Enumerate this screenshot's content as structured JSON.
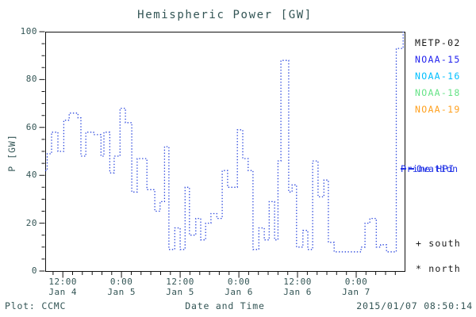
{
  "title": "Hemispheric Power [GW]",
  "footer": {
    "credit": "Plot: CCMC",
    "timestamp": "2015/01/07 08:50:14"
  },
  "legend": {
    "satellites": [
      {
        "label": "METP-02",
        "color": "#1a1a1a"
      },
      {
        "label": "NOAA-15",
        "color": "#2222ee"
      },
      {
        "label": "NOAA-16",
        "color": "#00bfff"
      },
      {
        "label": "NOAA-18",
        "color": "#66e387"
      },
      {
        "label": "NOAA-19",
        "color": "#ffa01e"
      }
    ],
    "model": {
      "line1": "Ovation",
      "line2": "Prime HPI",
      "color": "#2233e6"
    }
  },
  "markers": {
    "south": "+ south",
    "north": "* north"
  },
  "chart_data": {
    "type": "line",
    "style": "dotted-steps",
    "title": "Hemispheric Power [GW]",
    "xlabel": "Date and Time",
    "ylabel": "P [GW]",
    "line_color": "#2a46dd",
    "axis_color": "#111111",
    "x_unit": "hours since 2015-01-04 00:00 UT",
    "x_range": [
      8.4,
      81.9
    ],
    "y_range": [
      0,
      100
    ],
    "y_ticks": [
      0,
      20,
      40,
      60,
      80,
      100
    ],
    "y_minor_step": 5,
    "x_minor_step": 2,
    "x_ticks": [
      {
        "t": 12,
        "time": "12:00",
        "date": "Jan 4"
      },
      {
        "t": 24,
        "time": "0:00",
        "date": "Jan 5"
      },
      {
        "t": 36,
        "time": "12:00",
        "date": "Jan 5"
      },
      {
        "t": 48,
        "time": "0:00",
        "date": "Jan 6"
      },
      {
        "t": 60,
        "time": "12:00",
        "date": "Jan 6"
      },
      {
        "t": 72,
        "time": "0:00",
        "date": "Jan 7"
      }
    ],
    "t_end": 81.9,
    "steps": [
      [
        8.4,
        42
      ],
      [
        8.8,
        49
      ],
      [
        9.7,
        58
      ],
      [
        11.0,
        50
      ],
      [
        12.2,
        63
      ],
      [
        13.3,
        66
      ],
      [
        15.1,
        64
      ],
      [
        15.7,
        48
      ],
      [
        16.7,
        58
      ],
      [
        18.3,
        57
      ],
      [
        19.8,
        48
      ],
      [
        20.4,
        58
      ],
      [
        21.6,
        41
      ],
      [
        22.5,
        48
      ],
      [
        23.7,
        68
      ],
      [
        24.8,
        62
      ],
      [
        26.1,
        33
      ],
      [
        27.2,
        47
      ],
      [
        29.2,
        34
      ],
      [
        30.8,
        25
      ],
      [
        31.9,
        29
      ],
      [
        32.8,
        52
      ],
      [
        33.7,
        9
      ],
      [
        34.9,
        18
      ],
      [
        36.0,
        9
      ],
      [
        37.0,
        35
      ],
      [
        37.9,
        15
      ],
      [
        39.2,
        22
      ],
      [
        40.2,
        13
      ],
      [
        41.2,
        20
      ],
      [
        42.3,
        24
      ],
      [
        43.5,
        22
      ],
      [
        44.6,
        42
      ],
      [
        45.7,
        35
      ],
      [
        47.7,
        59
      ],
      [
        48.8,
        47
      ],
      [
        49.9,
        42
      ],
      [
        50.9,
        9
      ],
      [
        52.1,
        18
      ],
      [
        53.2,
        13
      ],
      [
        54.2,
        29
      ],
      [
        55.3,
        13
      ],
      [
        56.0,
        46
      ],
      [
        56.6,
        88
      ],
      [
        58.2,
        33
      ],
      [
        58.9,
        36
      ],
      [
        59.8,
        10
      ],
      [
        61.1,
        17
      ],
      [
        62.1,
        9
      ],
      [
        63.1,
        46
      ],
      [
        64.2,
        31
      ],
      [
        65.4,
        38
      ],
      [
        66.3,
        12
      ],
      [
        67.5,
        8
      ],
      [
        73.0,
        10
      ],
      [
        73.8,
        20
      ],
      [
        74.8,
        22
      ],
      [
        76.1,
        10
      ],
      [
        77.0,
        11
      ],
      [
        78.2,
        8
      ],
      [
        80.2,
        93
      ],
      [
        81.6,
        100
      ]
    ]
  }
}
